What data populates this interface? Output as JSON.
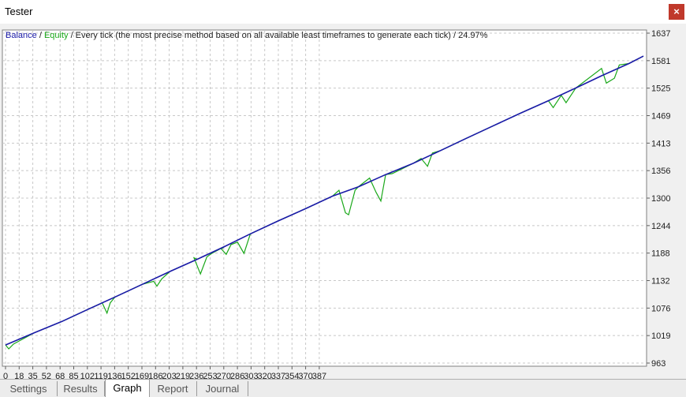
{
  "window": {
    "title": "Tester",
    "close_label": "×"
  },
  "tabs": [
    {
      "label": "Settings",
      "active": false
    },
    {
      "label": "Results",
      "active": false
    },
    {
      "label": "Graph",
      "active": true
    },
    {
      "label": "Report",
      "active": false
    },
    {
      "label": "Journal",
      "active": false
    }
  ],
  "legend": {
    "balance": "Balance",
    "sep1": " / ",
    "equity": "Equity",
    "description": " / Every tick (the most precise method based on all available least timeframes to generate each tick) / 24.97%"
  },
  "colors": {
    "balance": "#1a1aa8",
    "equity": "#1aa81a",
    "grid": "#c8c8c8",
    "plot_bg": "#ffffff"
  },
  "chart_data": {
    "type": "line",
    "x_ticks": [
      "0",
      "18",
      "35",
      "52",
      "68",
      "85",
      "102",
      "119",
      "136",
      "152",
      "169",
      "186",
      "203",
      "219",
      "236",
      "253",
      "270",
      "286",
      "303",
      "320",
      "337",
      "354",
      "370",
      "387"
    ],
    "y_ticks": [
      "1637",
      "1581",
      "1525",
      "1469",
      "1413",
      "1356",
      "1300",
      "1244",
      "1188",
      "1132",
      "1076",
      "1019",
      "963"
    ],
    "ylim": [
      963,
      1637
    ],
    "xlim": [
      0,
      396
    ],
    "series": [
      {
        "name": "Balance",
        "x": [
          0,
          18,
          35,
          52,
          68,
          85,
          102,
          119,
          136,
          152,
          169,
          186,
          203,
          219,
          236,
          253,
          270,
          286,
          303,
          320,
          337,
          354,
          370,
          387,
          396
        ],
        "y": [
          1000,
          1025,
          1048,
          1074,
          1098,
          1124,
          1150,
          1175,
          1201,
          1227,
          1253,
          1278,
          1304,
          1323,
          1348,
          1371,
          1397,
          1422,
          1448,
          1474,
          1499,
          1525,
          1550,
          1575,
          1590
        ]
      },
      {
        "name": "Equity",
        "x": [
          0,
          2,
          5,
          18,
          35,
          52,
          60,
          63,
          65,
          68,
          85,
          92,
          94,
          97,
          102,
          119,
          117,
          121,
          125,
          128,
          136,
          134,
          137,
          140,
          144,
          148,
          152,
          169,
          186,
          203,
          207,
          211,
          213,
          217,
          219,
          226,
          230,
          233,
          236,
          240,
          253,
          258,
          262,
          265,
          270,
          286,
          303,
          320,
          337,
          340,
          345,
          348,
          354,
          370,
          373,
          378,
          381,
          387,
          396
        ],
        "y": [
          1000,
          992,
          1002,
          1025,
          1048,
          1074,
          1086,
          1065,
          1086,
          1098,
          1124,
          1130,
          1120,
          1135,
          1150,
          1175,
          1178,
          1145,
          1180,
          1187,
          1201,
          1196,
          1185,
          1205,
          1210,
          1187,
          1227,
          1253,
          1278,
          1304,
          1316,
          1270,
          1266,
          1316,
          1323,
          1341,
          1312,
          1294,
          1348,
          1350,
          1371,
          1381,
          1365,
          1392,
          1397,
          1422,
          1448,
          1474,
          1499,
          1485,
          1510,
          1495,
          1525,
          1565,
          1535,
          1545,
          1572,
          1575,
          1590
        ]
      }
    ]
  }
}
